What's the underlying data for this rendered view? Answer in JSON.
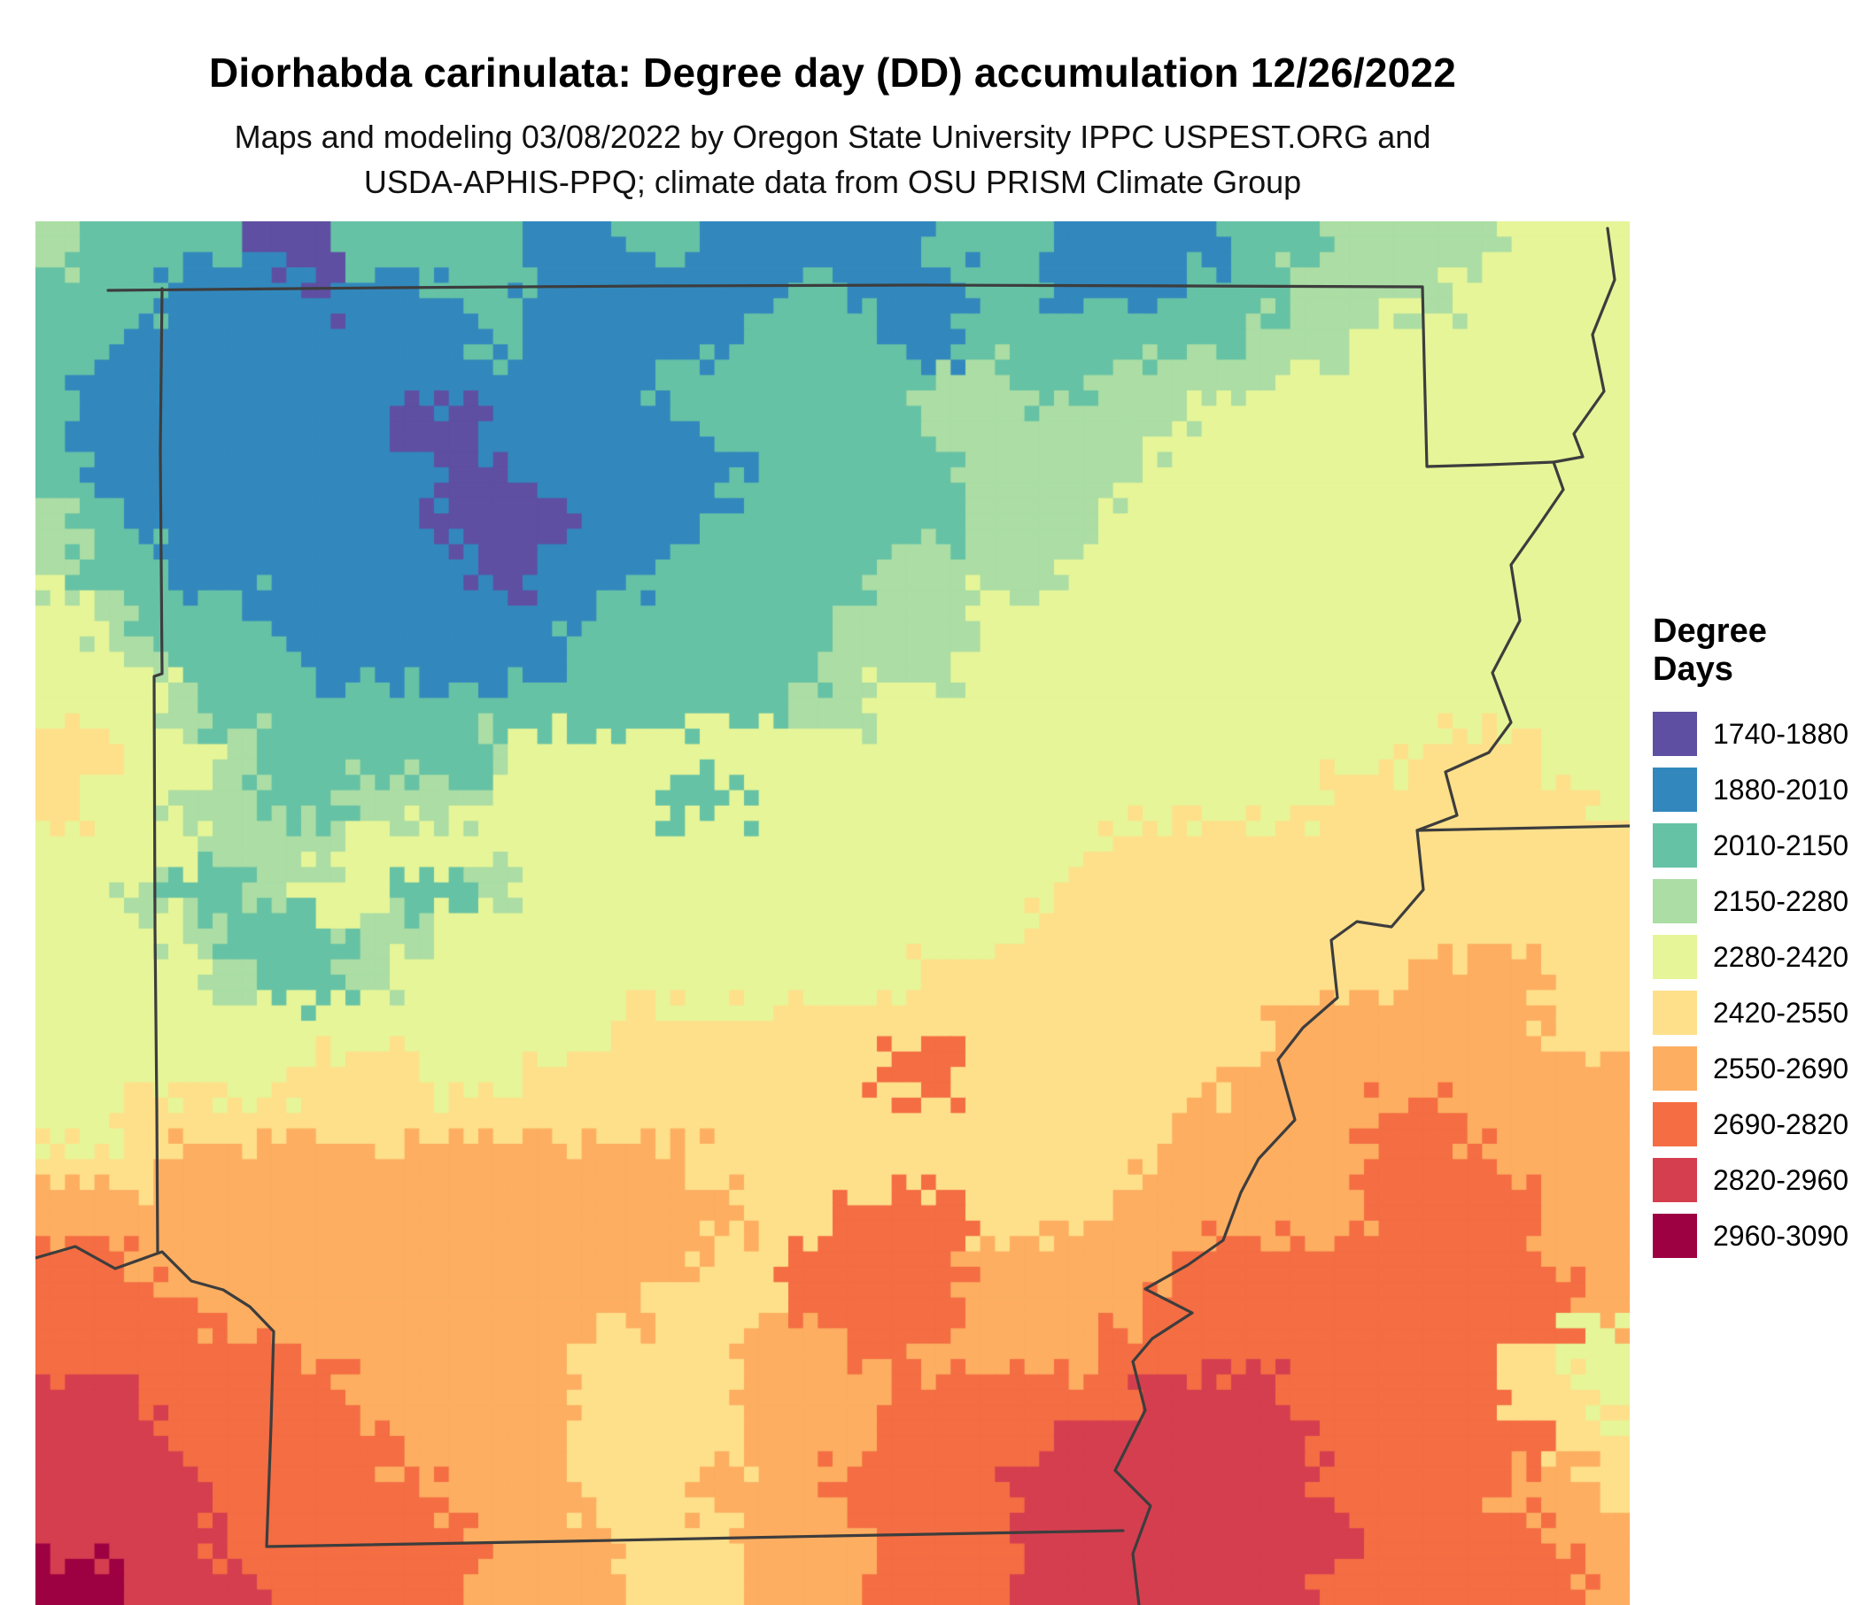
{
  "title": "Diorhabda carinulata: Degree day (DD) accumulation 12/26/2022",
  "subtitle": {
    "line1": "Maps and modeling 03/08/2022 by Oregon State University IPPC USPEST.ORG and",
    "line2": "USDA-APHIS-PPQ; climate data from OSU PRISM Climate Group"
  },
  "legend": {
    "title": "Degree Days",
    "entries": [
      {
        "label": "1740-1880",
        "color": "#5e4fa2"
      },
      {
        "label": "1880-2010",
        "color": "#3288bd"
      },
      {
        "label": "2010-2150",
        "color": "#66c2a5"
      },
      {
        "label": "2150-2280",
        "color": "#abdda4"
      },
      {
        "label": "2280-2420",
        "color": "#e6f598"
      },
      {
        "label": "2420-2550",
        "color": "#fee08b"
      },
      {
        "label": "2550-2690",
        "color": "#fdae61"
      },
      {
        "label": "2690-2820",
        "color": "#f46d43"
      },
      {
        "label": "2820-2960",
        "color": "#d53e4f"
      },
      {
        "label": "2960-3090",
        "color": "#9e0142"
      }
    ]
  },
  "map": {
    "cols": 36,
    "rows": 30,
    "palette": [
      "#5e4fa2",
      "#3288bd",
      "#66c2a5",
      "#abdda4",
      "#e6f598",
      "#fee08b",
      "#fdae61",
      "#f46d43",
      "#d53e4f",
      "#9e0142"
    ],
    "grid": [
      "322220022221122111112221111223333444",
      "222111011221111112111221112233334444",
      "221111111121111122211222222333444444",
      "211111111111112222223322333344444444",
      "211111110011111222223333334444444444",
      "211111111001111122222333344444444444",
      "321111111000111222222333444444444444",
      "322111111101112222233334444444444444",
      "432221111111122222333444444444444444",
      "443222111111222222333444444444444444",
      "444322222222222223344444444444444444",
      "554432222234444444444444444444455544",
      "544332233344442244444444444445555554",
      "444433344444444444444444555555555555",
      "443223442234444444444445555555555555",
      "444322233444444444444455555555555555",
      "444432234444444444445555555555566655",
      "444444444444455555555555555566666655",
      "444444555445555555577555555666666666",
      "445555555555555555555555556666776666",
      "555666666666666555555555566666777666",
      "666666666666666655777555666666777766",
      "776666666666666557777666667777777766",
      "777766666666665557777666677777777776",
      "777777666666555566776666777777777544",
      "887777766666555566677777788877777554",
      "888777776666555566677778888887777755",
      "888877777666555666777788888887777665",
      "888877777766655566677788888888777766",
      "998887777766655566677788888887777776"
    ]
  }
}
